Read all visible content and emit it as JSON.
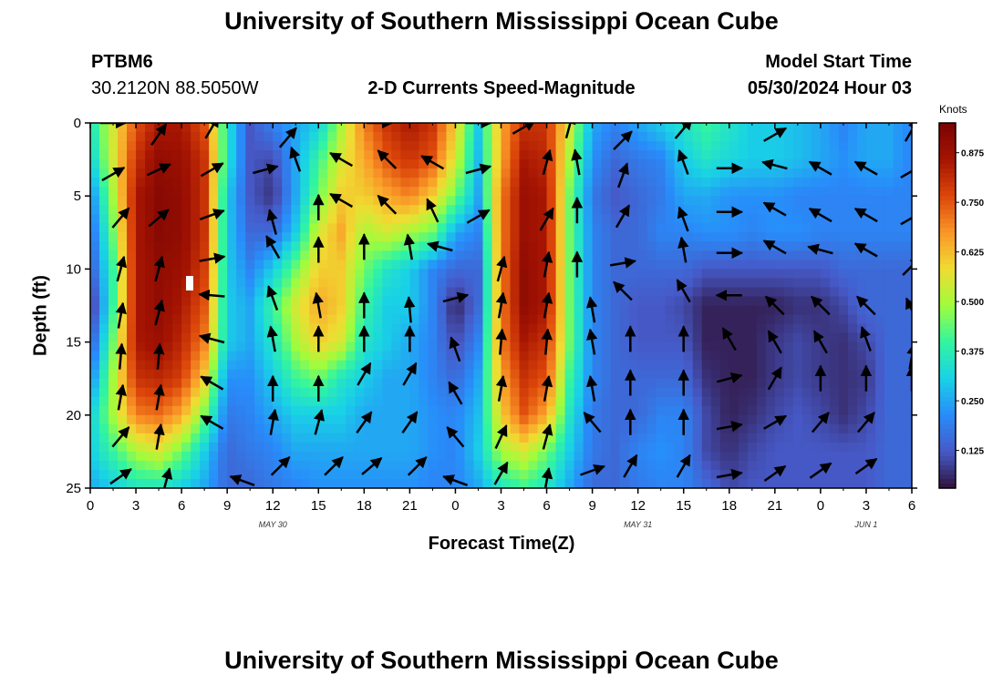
{
  "page_title": "University of Southern Mississippi Ocean Cube",
  "footer_title": "University of Southern Mississippi Ocean Cube",
  "station": {
    "id": "PTBM6",
    "coords": "30.2120N  88.5050W"
  },
  "plot_title": "2-D Currents Speed-Magnitude",
  "model_start": {
    "label": "Model Start Time",
    "value": "05/30/2024 Hour 03"
  },
  "chart_data": {
    "type": "heatmap",
    "xlabel": "Forecast Time(Z)",
    "ylabel": "Depth (ft)",
    "x_ticks": [
      "0",
      "3",
      "6",
      "9",
      "12",
      "15",
      "18",
      "21",
      "0",
      "3",
      "6",
      "9",
      "12",
      "15",
      "18",
      "21",
      "0",
      "3",
      "6"
    ],
    "y_ticks": [
      "0",
      "5",
      "10",
      "15",
      "20",
      "25"
    ],
    "ylim": [
      0,
      25
    ],
    "x_range_hours": [
      0,
      54
    ],
    "date_labels": [
      {
        "text": "MAY 30",
        "hour": 12
      },
      {
        "text": "MAY 31",
        "hour": 36
      },
      {
        "text": "JUN 1",
        "hour": 51
      }
    ],
    "colorbar": {
      "label": "Knots",
      "ticks": [
        "0.875",
        "0.750",
        "0.625",
        "0.500",
        "0.375",
        "0.250",
        "0.125"
      ],
      "tick_values": [
        0.875,
        0.75,
        0.625,
        0.5,
        0.375,
        0.25,
        0.125
      ],
      "range": [
        0.03,
        0.95
      ]
    },
    "speed_grid": {
      "hours": [
        0,
        1.5,
        3,
        4.5,
        6,
        7.5,
        9,
        10.5,
        12,
        13.5,
        15,
        16.5,
        18,
        19.5,
        21,
        22.5,
        24,
        25.5,
        27,
        28.5,
        30,
        31.5,
        33,
        34.5,
        36,
        37.5,
        39,
        40.5,
        42,
        43.5,
        45,
        46.5,
        48,
        49.5,
        51,
        52.5,
        54
      ],
      "depths": [
        0,
        2.5,
        5,
        7.5,
        10,
        12.5,
        15,
        17.5,
        20,
        22.5,
        25
      ],
      "values": [
        [
          0.35,
          0.55,
          0.75,
          0.85,
          0.85,
          0.75,
          0.35,
          0.12,
          0.2,
          0.25,
          0.3,
          0.5,
          0.7,
          0.8,
          0.85,
          0.8,
          0.6,
          0.3,
          0.65,
          0.8,
          0.8,
          0.55,
          0.25,
          0.2,
          0.25,
          0.3,
          0.35,
          0.4,
          0.35,
          0.3,
          0.3,
          0.28,
          0.25,
          0.2,
          0.25,
          0.25,
          0.2
        ],
        [
          0.3,
          0.55,
          0.8,
          0.9,
          0.88,
          0.8,
          0.35,
          0.12,
          0.1,
          0.25,
          0.4,
          0.55,
          0.65,
          0.75,
          0.8,
          0.75,
          0.55,
          0.28,
          0.65,
          0.85,
          0.82,
          0.5,
          0.22,
          0.15,
          0.18,
          0.2,
          0.3,
          0.35,
          0.32,
          0.3,
          0.3,
          0.28,
          0.25,
          0.22,
          0.25,
          0.25,
          0.2
        ],
        [
          0.2,
          0.5,
          0.85,
          0.92,
          0.9,
          0.8,
          0.3,
          0.12,
          0.07,
          0.25,
          0.45,
          0.6,
          0.6,
          0.65,
          0.7,
          0.6,
          0.45,
          0.25,
          0.7,
          0.88,
          0.85,
          0.45,
          0.18,
          0.12,
          0.15,
          0.18,
          0.25,
          0.25,
          0.22,
          0.22,
          0.22,
          0.2,
          0.2,
          0.2,
          0.2,
          0.2,
          0.2
        ],
        [
          0.15,
          0.45,
          0.85,
          0.92,
          0.9,
          0.8,
          0.3,
          0.15,
          0.15,
          0.3,
          0.55,
          0.65,
          0.5,
          0.55,
          0.5,
          0.45,
          0.25,
          0.2,
          0.7,
          0.88,
          0.85,
          0.45,
          0.2,
          0.15,
          0.15,
          0.2,
          0.2,
          0.22,
          0.22,
          0.2,
          0.22,
          0.22,
          0.2,
          0.2,
          0.2,
          0.2,
          0.2
        ],
        [
          0.12,
          0.4,
          0.85,
          0.9,
          0.88,
          0.78,
          0.3,
          0.2,
          0.3,
          0.45,
          0.6,
          0.6,
          0.45,
          0.35,
          0.3,
          0.2,
          0.15,
          0.15,
          0.7,
          0.9,
          0.85,
          0.45,
          0.2,
          0.15,
          0.15,
          0.15,
          0.15,
          0.12,
          0.12,
          0.12,
          0.12,
          0.12,
          0.12,
          0.15,
          0.15,
          0.15,
          0.15
        ],
        [
          0.05,
          0.4,
          0.85,
          0.9,
          0.85,
          0.75,
          0.3,
          0.25,
          0.4,
          0.55,
          0.65,
          0.6,
          0.4,
          0.3,
          0.3,
          0.2,
          0.05,
          0.15,
          0.7,
          0.9,
          0.85,
          0.45,
          0.2,
          0.15,
          0.12,
          0.12,
          0.1,
          0.05,
          0.05,
          0.05,
          0.05,
          0.07,
          0.07,
          0.1,
          0.15,
          0.15,
          0.15
        ],
        [
          0.12,
          0.45,
          0.85,
          0.88,
          0.82,
          0.7,
          0.3,
          0.25,
          0.35,
          0.5,
          0.6,
          0.55,
          0.35,
          0.3,
          0.25,
          0.2,
          0.1,
          0.2,
          0.7,
          0.85,
          0.8,
          0.45,
          0.2,
          0.15,
          0.12,
          0.12,
          0.12,
          0.05,
          0.05,
          0.05,
          0.08,
          0.1,
          0.08,
          0.07,
          0.1,
          0.15,
          0.15
        ],
        [
          0.2,
          0.5,
          0.8,
          0.82,
          0.78,
          0.6,
          0.22,
          0.22,
          0.3,
          0.4,
          0.45,
          0.35,
          0.3,
          0.25,
          0.25,
          0.2,
          0.15,
          0.25,
          0.65,
          0.8,
          0.75,
          0.4,
          0.2,
          0.15,
          0.15,
          0.15,
          0.15,
          0.07,
          0.05,
          0.05,
          0.08,
          0.1,
          0.08,
          0.07,
          0.08,
          0.15,
          0.15
        ],
        [
          0.3,
          0.5,
          0.7,
          0.72,
          0.65,
          0.45,
          0.18,
          0.2,
          0.25,
          0.3,
          0.3,
          0.3,
          0.25,
          0.25,
          0.25,
          0.22,
          0.2,
          0.28,
          0.6,
          0.75,
          0.65,
          0.35,
          0.18,
          0.15,
          0.15,
          0.2,
          0.2,
          0.1,
          0.05,
          0.07,
          0.1,
          0.12,
          0.1,
          0.07,
          0.1,
          0.15,
          0.15
        ],
        [
          0.3,
          0.4,
          0.5,
          0.55,
          0.45,
          0.3,
          0.15,
          0.18,
          0.2,
          0.25,
          0.25,
          0.25,
          0.25,
          0.25,
          0.25,
          0.22,
          0.2,
          0.3,
          0.5,
          0.55,
          0.45,
          0.3,
          0.18,
          0.15,
          0.2,
          0.22,
          0.2,
          0.1,
          0.07,
          0.1,
          0.12,
          0.12,
          0.12,
          0.12,
          0.12,
          0.15,
          0.15
        ],
        [
          0.25,
          0.3,
          0.35,
          0.35,
          0.3,
          0.25,
          0.15,
          0.15,
          0.18,
          0.2,
          0.22,
          0.22,
          0.22,
          0.22,
          0.22,
          0.2,
          0.2,
          0.25,
          0.35,
          0.4,
          0.35,
          0.25,
          0.15,
          0.15,
          0.18,
          0.2,
          0.2,
          0.15,
          0.1,
          0.12,
          0.12,
          0.12,
          0.12,
          0.12,
          0.12,
          0.15,
          0.15
        ]
      ]
    },
    "vectors": [
      [
        1.5,
        0,
        90
      ],
      [
        4.5,
        0.8,
        35
      ],
      [
        8,
        0.3,
        30
      ],
      [
        13,
        1,
        40
      ],
      [
        19,
        0,
        90
      ],
      [
        25.5,
        0,
        90
      ],
      [
        28.5,
        0.3,
        60
      ],
      [
        31.5,
        0.2,
        15
      ],
      [
        35,
        1.2,
        45
      ],
      [
        39,
        0.4,
        40
      ],
      [
        45,
        0.8,
        60
      ],
      [
        54,
        0.5,
        30
      ],
      [
        1.5,
        3.5,
        60
      ],
      [
        4.5,
        3.2,
        65
      ],
      [
        8,
        3.2,
        60
      ],
      [
        11.5,
        3.2,
        75
      ],
      [
        13.5,
        2.5,
        -20
      ],
      [
        16.5,
        2.5,
        -60
      ],
      [
        19.5,
        2.5,
        -45
      ],
      [
        22.5,
        2.7,
        -60
      ],
      [
        25.5,
        3.2,
        75
      ],
      [
        30,
        2.7,
        15
      ],
      [
        32,
        2.7,
        -10
      ],
      [
        35,
        3.6,
        20
      ],
      [
        39,
        2.7,
        -20
      ],
      [
        42,
        3.1,
        90
      ],
      [
        45,
        2.9,
        -75
      ],
      [
        48,
        3.1,
        -60
      ],
      [
        51,
        3.1,
        -60
      ],
      [
        54,
        3.3,
        60
      ],
      [
        2,
        6.5,
        40
      ],
      [
        4.5,
        6.5,
        50
      ],
      [
        8,
        6.3,
        70
      ],
      [
        12,
        6.8,
        -15
      ],
      [
        15,
        5.8,
        0
      ],
      [
        16.5,
        5.3,
        -60
      ],
      [
        19.5,
        5.6,
        -45
      ],
      [
        22.5,
        6,
        -25
      ],
      [
        25.5,
        6.4,
        60
      ],
      [
        30,
        6.6,
        30
      ],
      [
        32,
        6,
        0
      ],
      [
        35,
        6.4,
        30
      ],
      [
        39,
        6.6,
        -20
      ],
      [
        42,
        6.1,
        90
      ],
      [
        45,
        5.9,
        -60
      ],
      [
        48,
        6.3,
        -60
      ],
      [
        51,
        6.3,
        -60
      ],
      [
        54,
        6.5,
        60
      ],
      [
        2,
        10,
        15
      ],
      [
        4.5,
        10,
        15
      ],
      [
        8,
        9.3,
        80
      ],
      [
        12,
        8.5,
        -30
      ],
      [
        15,
        8.7,
        0
      ],
      [
        18,
        8.5,
        0
      ],
      [
        21,
        8.5,
        -10
      ],
      [
        23,
        8.5,
        -75
      ],
      [
        27,
        10,
        15
      ],
      [
        30,
        9.7,
        10
      ],
      [
        32,
        9.7,
        0
      ],
      [
        35,
        9.6,
        80
      ],
      [
        39,
        8.7,
        -10
      ],
      [
        42,
        8.9,
        90
      ],
      [
        45,
        8.5,
        -60
      ],
      [
        48,
        8.7,
        -75
      ],
      [
        51,
        8.7,
        -60
      ],
      [
        54,
        9.8,
        45
      ],
      [
        2,
        13.2,
        10
      ],
      [
        4.5,
        13,
        15
      ],
      [
        8,
        11.8,
        -85
      ],
      [
        12,
        12,
        -20
      ],
      [
        15,
        12.5,
        -10
      ],
      [
        18,
        12.5,
        0
      ],
      [
        21,
        12.8,
        -5
      ],
      [
        24,
        12,
        75
      ],
      [
        27,
        12.5,
        10
      ],
      [
        30,
        12.5,
        10
      ],
      [
        33,
        12.8,
        -10
      ],
      [
        35,
        11.5,
        -45
      ],
      [
        39,
        11.5,
        -30
      ],
      [
        42,
        11.8,
        -90
      ],
      [
        45,
        12.5,
        -45
      ],
      [
        48,
        12.5,
        -45
      ],
      [
        51,
        12.5,
        -45
      ],
      [
        54,
        12.8,
        -25
      ],
      [
        2,
        16,
        5
      ],
      [
        4.5,
        16,
        5
      ],
      [
        8,
        14.8,
        -75
      ],
      [
        12,
        14.8,
        -10
      ],
      [
        15,
        14.8,
        0
      ],
      [
        18,
        14.8,
        0
      ],
      [
        21,
        14.8,
        0
      ],
      [
        24,
        15.5,
        -20
      ],
      [
        27,
        15,
        5
      ],
      [
        30,
        15,
        5
      ],
      [
        33,
        15,
        -10
      ],
      [
        35.5,
        14.8,
        0
      ],
      [
        39,
        14.8,
        0
      ],
      [
        42,
        14.8,
        -30
      ],
      [
        45,
        15,
        -30
      ],
      [
        48,
        15,
        -30
      ],
      [
        51,
        14.8,
        -20
      ],
      [
        54,
        16,
        10
      ],
      [
        2,
        18.8,
        10
      ],
      [
        4.5,
        18.8,
        10
      ],
      [
        8,
        17.8,
        -60
      ],
      [
        12,
        18.2,
        0
      ],
      [
        15,
        18.2,
        0
      ],
      [
        18,
        17.2,
        30
      ],
      [
        21,
        17.2,
        30
      ],
      [
        24,
        18.5,
        -30
      ],
      [
        27,
        18.2,
        10
      ],
      [
        30,
        18.2,
        10
      ],
      [
        33,
        18.2,
        -10
      ],
      [
        35.5,
        17.8,
        0
      ],
      [
        39,
        17.8,
        0
      ],
      [
        42,
        17.5,
        75
      ],
      [
        45,
        17.5,
        30
      ],
      [
        48,
        17.5,
        0
      ],
      [
        51,
        17.5,
        0
      ],
      [
        54,
        17.5,
        0
      ],
      [
        2,
        21.5,
        40
      ],
      [
        4.5,
        21.5,
        10
      ],
      [
        8,
        20.5,
        -60
      ],
      [
        12,
        20.5,
        10
      ],
      [
        15,
        20.5,
        15
      ],
      [
        18,
        20.5,
        35
      ],
      [
        21,
        20.5,
        35
      ],
      [
        24,
        21.5,
        -40
      ],
      [
        27,
        21.5,
        25
      ],
      [
        30,
        21.5,
        15
      ],
      [
        33,
        20.5,
        -40
      ],
      [
        35.5,
        20.5,
        0
      ],
      [
        39,
        20.5,
        0
      ],
      [
        42,
        20.8,
        80
      ],
      [
        45,
        20.5,
        60
      ],
      [
        48,
        20.5,
        40
      ],
      [
        51,
        20.5,
        40
      ],
      [
        2,
        24.2,
        55
      ],
      [
        5,
        24.5,
        15
      ],
      [
        10,
        24.5,
        -70
      ],
      [
        12.5,
        23.5,
        45
      ],
      [
        16,
        23.5,
        45
      ],
      [
        18.5,
        23.5,
        50
      ],
      [
        21.5,
        23.5,
        45
      ],
      [
        24,
        24.5,
        -70
      ],
      [
        27,
        24,
        30
      ],
      [
        30,
        24.5,
        10
      ],
      [
        33,
        23.8,
        70
      ],
      [
        35.5,
        23.5,
        30
      ],
      [
        39,
        23.5,
        30
      ],
      [
        42,
        24.1,
        80
      ],
      [
        45,
        24,
        55
      ],
      [
        48,
        23.8,
        55
      ],
      [
        51,
        23.5,
        55
      ]
    ]
  }
}
